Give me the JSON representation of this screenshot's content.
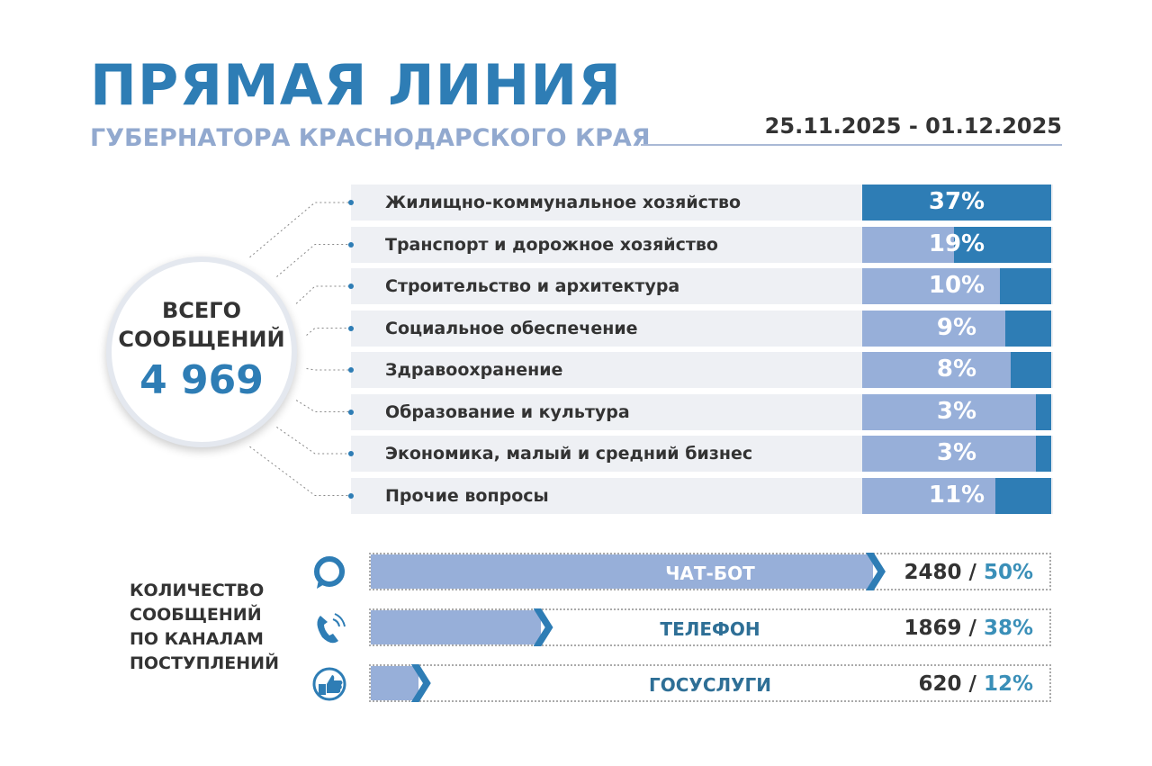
{
  "header": {
    "title": "ПРЯМАЯ ЛИНИЯ",
    "subtitle": "ГУБЕРНАТОРА КРАСНОДАРСКОГО КРАЯ",
    "dates": "25.11.2025 - 01.12.2025"
  },
  "total": {
    "line1": "ВСЕГО",
    "line2": "СООБЩЕНИЙ",
    "value": "4 969"
  },
  "colors": {
    "accent": "#2e7db5",
    "light": "#97afd9",
    "row_bg": "#eef0f4"
  },
  "chart_data": [
    {
      "type": "bar",
      "categories": [
        "Жилищно-коммунальное хозяйство",
        "Транспорт и дорожное хозяйство",
        "Строительство и архитектура",
        "Социальное обеспечение",
        "Здравоохранение",
        "Образование и культура",
        "Экономика, малый и средний бизнес",
        "Прочие вопросы"
      ],
      "values": [
        37,
        19,
        10,
        9,
        8,
        3,
        3,
        11
      ],
      "labels": [
        "37%",
        "19%",
        "10%",
        "9%",
        "8%",
        "3%",
        "3%",
        "11%"
      ],
      "unit": "%"
    },
    {
      "type": "bar",
      "title": "КОЛИЧЕСТВО СООБЩЕНИЙ ПО КАНАЛАМ ПОСТУПЛЕНИЙ",
      "categories": [
        "ЧАТ-БОТ",
        "ТЕЛЕФОН",
        "ГОСУСЛУГИ"
      ],
      "counts": [
        "2480",
        "1869",
        "620"
      ],
      "percents": [
        "50%",
        "38%",
        "12%"
      ],
      "icons": [
        "chat-bubble-icon",
        "phone-icon",
        "thumbs-up-icon"
      ]
    }
  ],
  "channels_label": [
    "КОЛИЧЕСТВО",
    "СООБЩЕНИЙ",
    "ПО КАНАЛАМ",
    "ПОСТУПЛЕНИЙ"
  ]
}
